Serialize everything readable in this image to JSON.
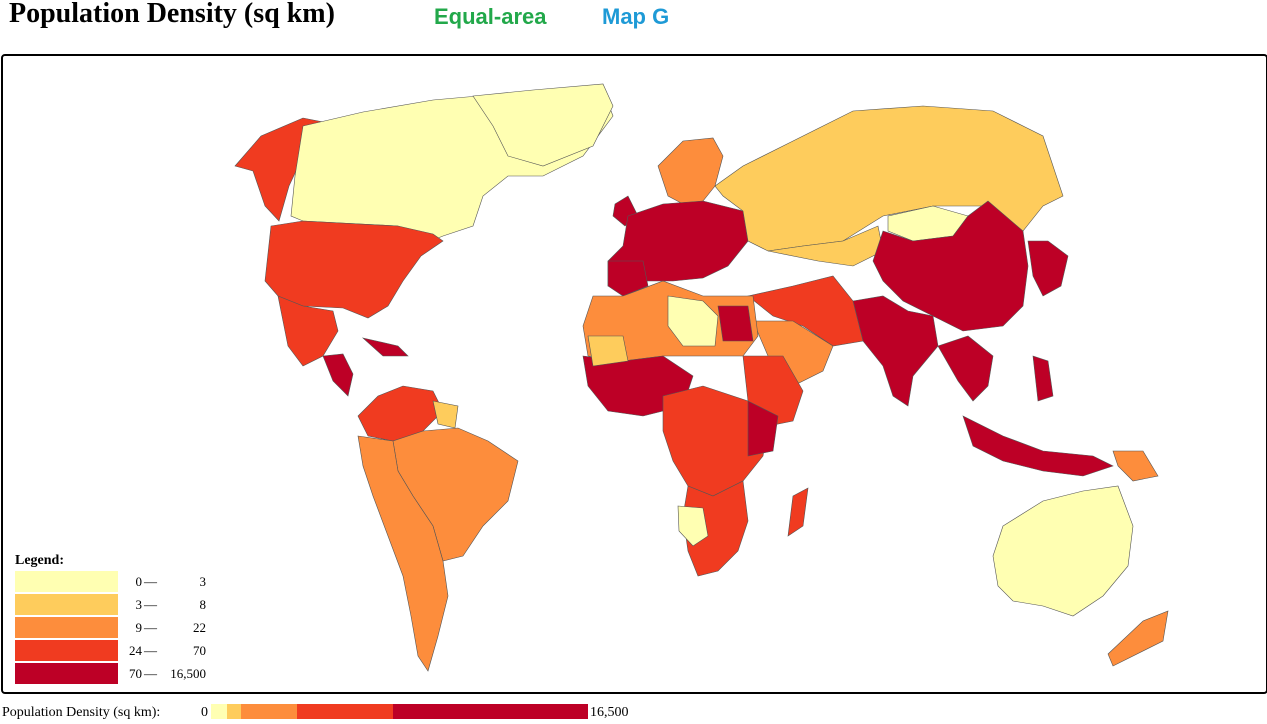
{
  "header": {
    "title": "Population Density (sq km)",
    "link_equal_area": "Equal-area",
    "link_map_g": "Map G"
  },
  "colors": {
    "c1": "#ffffb2",
    "c2": "#fecc5c",
    "c3": "#fd8d3c",
    "c4": "#f03b20",
    "c5": "#bd0026"
  },
  "legend": {
    "title": "Legend:",
    "items": [
      {
        "low": "0",
        "high": "3",
        "color": "#ffffb2"
      },
      {
        "low": "3",
        "high": "8",
        "color": "#fecc5c"
      },
      {
        "low": "9",
        "high": "22",
        "color": "#fd8d3c"
      },
      {
        "low": "24",
        "high": "70",
        "color": "#f03b20"
      },
      {
        "low": "70",
        "high": "16,500",
        "color": "#bd0026"
      }
    ],
    "dash": "—"
  },
  "scale": {
    "label": "Population Density (sq km):",
    "min": "0",
    "max": "16,500"
  }
}
